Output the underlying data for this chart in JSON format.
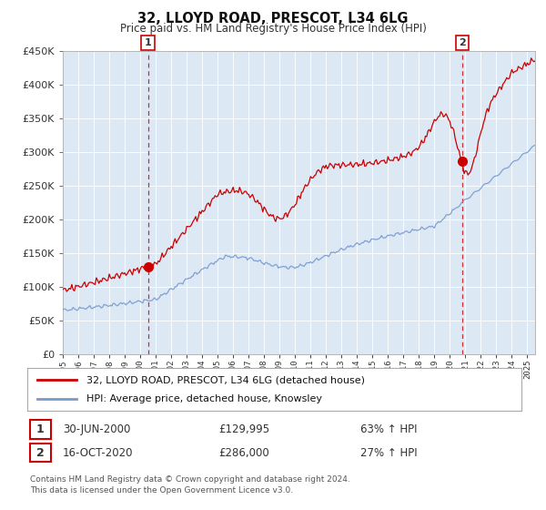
{
  "title": "32, LLOYD ROAD, PRESCOT, L34 6LG",
  "subtitle": "Price paid vs. HM Land Registry's House Price Index (HPI)",
  "ylim": [
    0,
    450000
  ],
  "xlim_start": 1995.0,
  "xlim_end": 2025.5,
  "legend_line1": "32, LLOYD ROAD, PRESCOT, L34 6LG (detached house)",
  "legend_line2": "HPI: Average price, detached house, Knowsley",
  "point1_date": "30-JUN-2000",
  "point1_price": "£129,995",
  "point1_hpi": "63% ↑ HPI",
  "point1_x": 2000.5,
  "point1_y": 129995,
  "point2_date": "16-OCT-2020",
  "point2_price": "£286,000",
  "point2_hpi": "27% ↑ HPI",
  "point2_x": 2020.79,
  "point2_y": 286000,
  "vline1_x": 2000.5,
  "vline2_x": 2020.79,
  "footer": "Contains HM Land Registry data © Crown copyright and database right 2024.\nThis data is licensed under the Open Government Licence v3.0.",
  "line_color_red": "#cc0000",
  "line_color_blue": "#7799cc",
  "background_color": "#ffffff",
  "plot_bg_color": "#dde8f5",
  "grid_color": "#ffffff"
}
